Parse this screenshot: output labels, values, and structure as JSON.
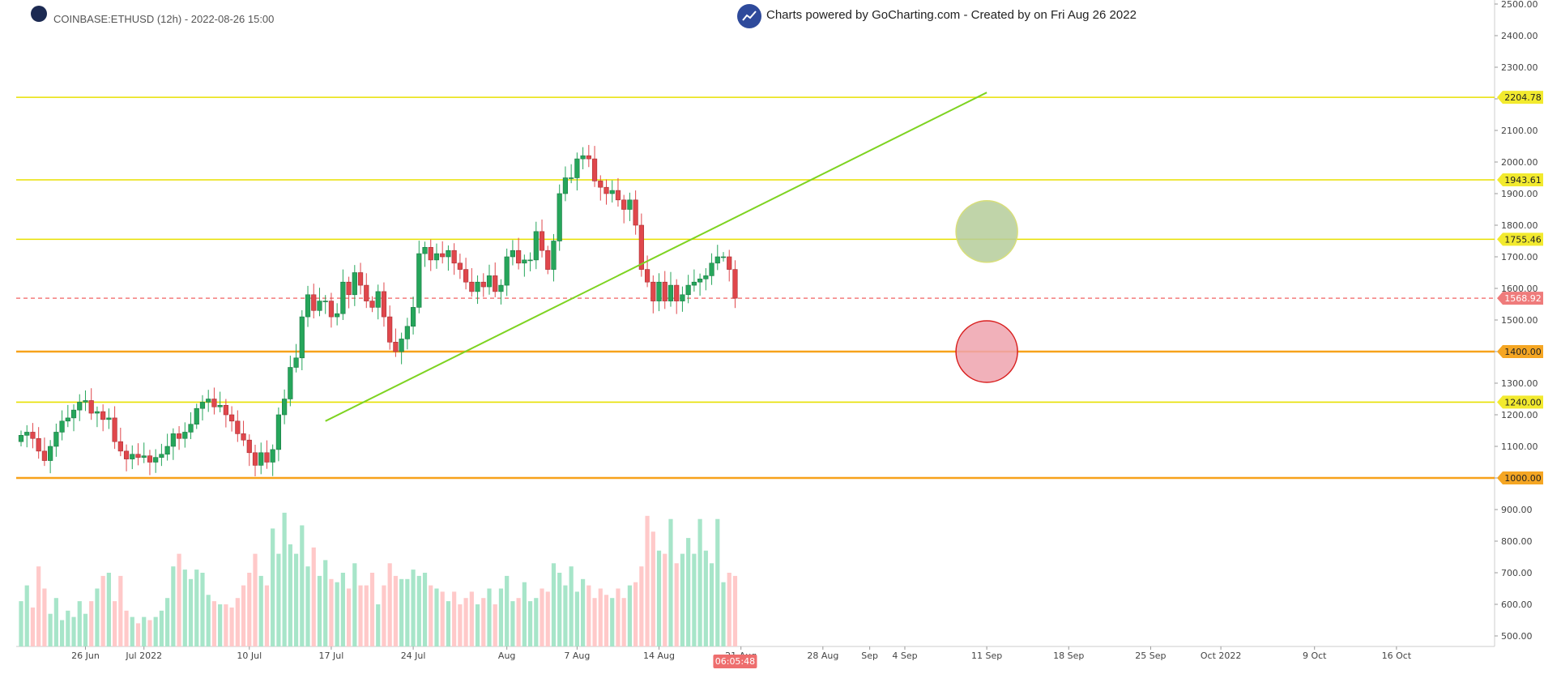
{
  "header": {
    "symbol_line": "COINBASE:ETHUSD (12h) - 2022-08-26 15:00",
    "powered_by": "Charts powered by GoCharting.com - Created by  on Fri Aug 26 2022",
    "logo_icon": "gocharting-logo-icon"
  },
  "chart_data": {
    "type": "candlestick",
    "title": "",
    "xlabel": "",
    "ylabel": "",
    "ylim": [
      470,
      2500
    ],
    "y_ticks": [
      "2500.00",
      "2400.00",
      "2300.00",
      "2200.00",
      "2100.00",
      "2000.00",
      "1900.00",
      "1800.00",
      "1700.00",
      "1600.00",
      "1500.00",
      "1400.00",
      "1300.00",
      "1200.00",
      "1100.00",
      "1000.00",
      "900.00",
      "800.00",
      "700.00",
      "600.00",
      "500.00"
    ],
    "x_ticks": [
      "26 Jun",
      "Jul 2022",
      "10 Jul",
      "17 Jul",
      "24 Jul",
      "Aug",
      "7 Aug",
      "14 Aug",
      "21 Aug",
      "28 Aug",
      "Sep",
      "4 Sep",
      "11 Sep",
      "18 Sep",
      "25 Sep",
      "Oct 2022",
      "9 Oct",
      "16 Oct"
    ],
    "x_start_day": "2022-06-20 12:00",
    "candles_per_day": 2,
    "closes": [
      1135,
      1145,
      1125,
      1085,
      1055,
      1100,
      1145,
      1180,
      1190,
      1215,
      1240,
      1245,
      1205,
      1210,
      1185,
      1190,
      1115,
      1085,
      1060,
      1075,
      1065,
      1070,
      1050,
      1065,
      1075,
      1100,
      1140,
      1125,
      1145,
      1170,
      1220,
      1240,
      1250,
      1225,
      1230,
      1200,
      1180,
      1140,
      1120,
      1080,
      1040,
      1080,
      1050,
      1090,
      1200,
      1250,
      1350,
      1380,
      1510,
      1580,
      1530,
      1560,
      1560,
      1510,
      1520,
      1620,
      1580,
      1650,
      1610,
      1560,
      1540,
      1590,
      1510,
      1430,
      1400,
      1440,
      1480,
      1540,
      1710,
      1730,
      1690,
      1710,
      1700,
      1720,
      1680,
      1660,
      1620,
      1590,
      1620,
      1605,
      1640,
      1590,
      1610,
      1700,
      1720,
      1680,
      1690,
      1690,
      1780,
      1720,
      1660,
      1750,
      1900,
      1950,
      1950,
      2010,
      2020,
      2010,
      1940,
      1920,
      1900,
      1910,
      1880,
      1850,
      1880,
      1800,
      1660,
      1620,
      1560,
      1620,
      1560,
      1610,
      1560,
      1580,
      1610,
      1620,
      1630,
      1640,
      1680,
      1700,
      1700,
      1660,
      1568.92
    ],
    "volumes": [
      610,
      660,
      590,
      720,
      650,
      570,
      620,
      550,
      580,
      560,
      610,
      570,
      610,
      650,
      690,
      700,
      610,
      690,
      580,
      560,
      540,
      560,
      550,
      560,
      580,
      620,
      720,
      760,
      710,
      680,
      710,
      700,
      630,
      610,
      600,
      600,
      590,
      620,
      660,
      700,
      760,
      690,
      660,
      840,
      760,
      890,
      790,
      760,
      850,
      720,
      780,
      690,
      740,
      680,
      670,
      700,
      650,
      730,
      660,
      660,
      700,
      600,
      660,
      730,
      690,
      680,
      680,
      710,
      690,
      700,
      660,
      650,
      640,
      610,
      640,
      600,
      620,
      640,
      600,
      620,
      650,
      600,
      650,
      690,
      610,
      620,
      670,
      610,
      620,
      650,
      640,
      730,
      700,
      660,
      720,
      640,
      680,
      660,
      620,
      650,
      630,
      620,
      650,
      620,
      660,
      670,
      720,
      880,
      830,
      770,
      760,
      870,
      730,
      760,
      810,
      760,
      870,
      770,
      730,
      870,
      670,
      700,
      690
    ],
    "volume_axis": "overlay",
    "horizontal_levels": [
      {
        "value": 2204.78,
        "label": "2204.78",
        "color": "#e8e000",
        "style": "solid"
      },
      {
        "value": 1943.61,
        "label": "1943.61",
        "color": "#e8e000",
        "style": "solid"
      },
      {
        "value": 1755.46,
        "label": "1755.46",
        "color": "#e8e000",
        "style": "solid"
      },
      {
        "value": 1568.92,
        "label": "1568.92",
        "color": "#f47c7c",
        "style": "dashed"
      },
      {
        "value": 1400.0,
        "label": "1400.00",
        "color": "#f7a21b",
        "style": "solid"
      },
      {
        "value": 1240.0,
        "label": "1240.00",
        "color": "#e8e000",
        "style": "solid"
      },
      {
        "value": 1000.0,
        "label": "1000.00",
        "color": "#f7a21b",
        "style": "solid"
      }
    ],
    "trendline": {
      "from": {
        "day": "2022-07-16 12:00",
        "price": 1180
      },
      "to": {
        "day": "2022-09-11 00:00",
        "price": 2220
      },
      "color": "#7ed321"
    },
    "markers": [
      {
        "type": "circle",
        "center_day": "2022-09-11 00:00",
        "center_price": 1780,
        "radius_price": 100,
        "fill": "#b5cc9a",
        "stroke": "#d8df7a"
      },
      {
        "type": "circle",
        "center_day": "2022-09-11 00:00",
        "center_price": 1400,
        "radius_price": 100,
        "fill": "#eea3ae",
        "stroke": "#d9201f"
      }
    ],
    "countdown": "06:05:48",
    "colors": {
      "up": "#26a65b",
      "down": "#e0474c",
      "vol_up": "#a7e5c9",
      "vol_down": "#ffc9c9",
      "axis_text": "#444444",
      "countdown_bg": "#ee6e6e"
    },
    "grid": false
  }
}
